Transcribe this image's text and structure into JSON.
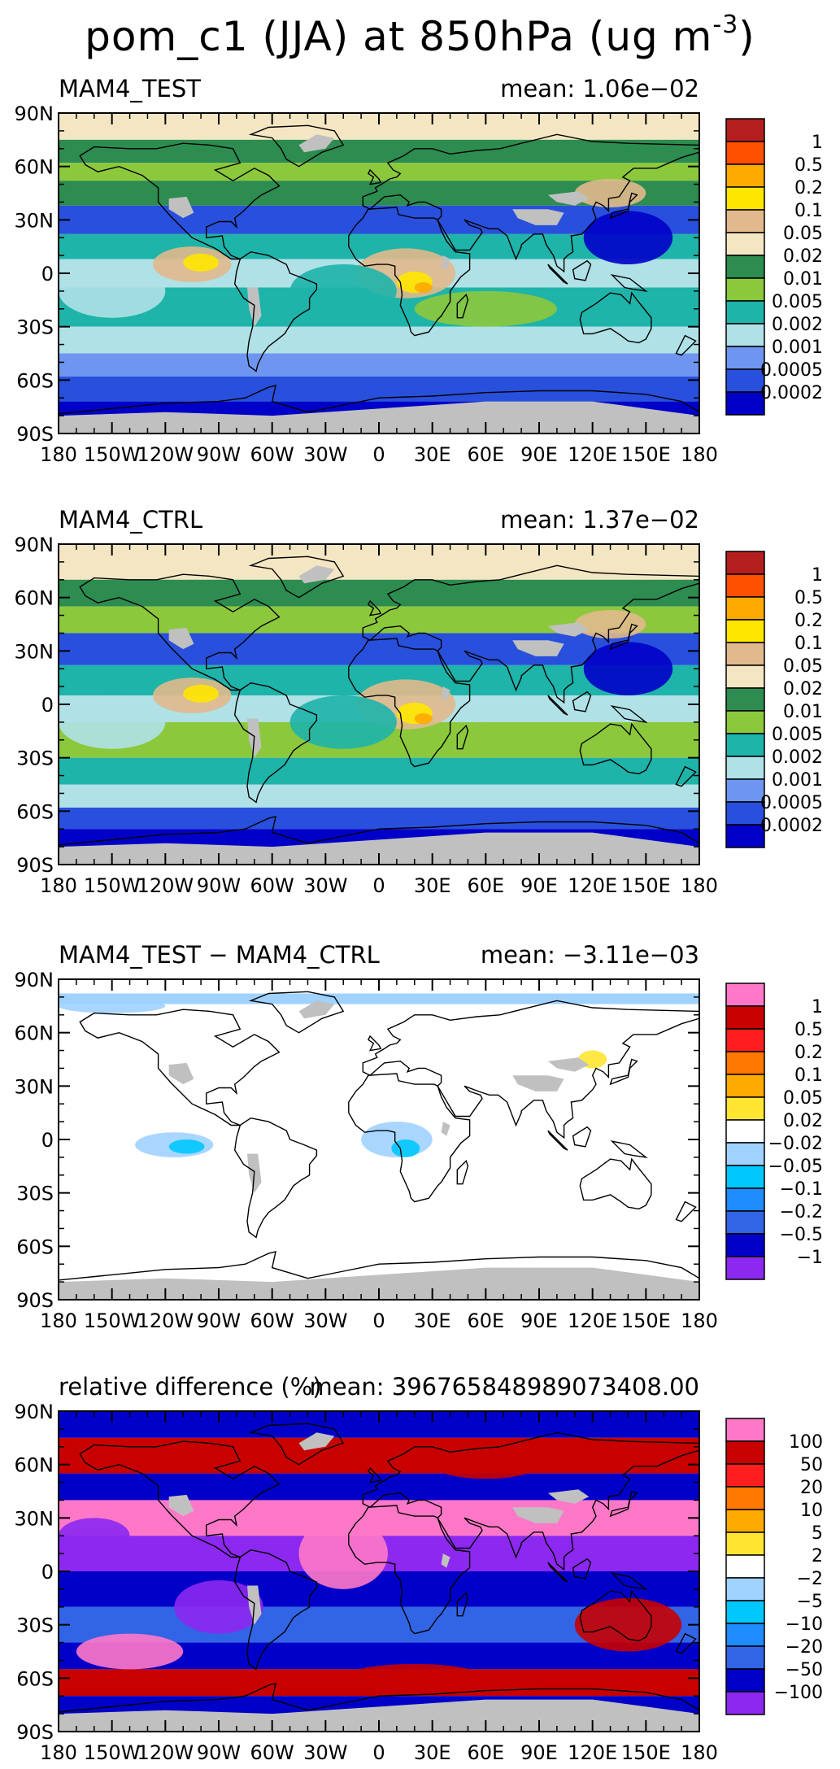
{
  "title": {
    "text": "pom_c1 (JJA) at 850hPa (ug m",
    "superscript": "-3",
    "close": ")"
  },
  "axes": {
    "lat_ticks": [
      "90N",
      "60N",
      "30N",
      "0",
      "30S",
      "60S",
      "90S"
    ],
    "lon_ticks": [
      "180",
      "150W",
      "120W",
      "90W",
      "60W",
      "30W",
      "0",
      "30E",
      "60E",
      "90E",
      "120E",
      "150E",
      "180"
    ]
  },
  "colors": {
    "abs_scale": [
      "#0000c8",
      "#2850dc",
      "#6e96f0",
      "#afe1e6",
      "#1eb4aa",
      "#8cc83c",
      "#2d8c50",
      "#f5e6c3",
      "#e1b98c",
      "#ffe600",
      "#ffaa00",
      "#ff5000",
      "#b41e1e"
    ],
    "diff_scale": [
      "#8c28f0",
      "#0000c8",
      "#3264e6",
      "#1e8cff",
      "#00c8ff",
      "#a0d2ff",
      "#ffffff",
      "#ffe632",
      "#ffaa00",
      "#ff7800",
      "#ff1e1e",
      "#c80000",
      "#ff78c8"
    ],
    "land_outline": "#000000",
    "missing": "#c0c0c0"
  },
  "chart_data": [
    {
      "type": "heatmap",
      "panel": "MAM4_TEST",
      "title": "MAM4_TEST",
      "mean_label": "mean:  1.06e−02",
      "mean": 0.0106,
      "xlim": [
        -180,
        180
      ],
      "ylim": [
        -90,
        90
      ],
      "colorbar_labels": [
        "1",
        "0.5",
        "0.2",
        "0.1",
        "0.05",
        "0.02",
        "0.01",
        "0.005",
        "0.002",
        "0.001",
        "0.0005",
        "0.0002"
      ],
      "levels": [
        0.0002,
        0.0005,
        0.001,
        0.002,
        0.005,
        0.01,
        0.02,
        0.05,
        0.1,
        0.2,
        0.5,
        1
      ]
    },
    {
      "type": "heatmap",
      "panel": "MAM4_CTRL",
      "title": "MAM4_CTRL",
      "mean_label": "mean:  1.37e−02",
      "mean": 0.0137,
      "xlim": [
        -180,
        180
      ],
      "ylim": [
        -90,
        90
      ],
      "colorbar_labels": [
        "1",
        "0.5",
        "0.2",
        "0.1",
        "0.05",
        "0.02",
        "0.01",
        "0.005",
        "0.002",
        "0.001",
        "0.0005",
        "0.0002"
      ],
      "levels": [
        0.0002,
        0.0005,
        0.001,
        0.002,
        0.005,
        0.01,
        0.02,
        0.05,
        0.1,
        0.2,
        0.5,
        1
      ]
    },
    {
      "type": "heatmap",
      "panel": "difference",
      "title": "MAM4_TEST − MAM4_CTRL",
      "mean_label": "mean:  −3.11e−03",
      "mean": -0.00311,
      "xlim": [
        -180,
        180
      ],
      "ylim": [
        -90,
        90
      ],
      "colorbar_labels": [
        "1",
        "0.5",
        "0.2",
        "0.1",
        "0.05",
        "0.02",
        "−0.02",
        "−0.05",
        "−0.1",
        "−0.2",
        "−0.5",
        "−1"
      ],
      "levels": [
        -1,
        -0.5,
        -0.2,
        -0.1,
        -0.05,
        -0.02,
        0.02,
        0.05,
        0.1,
        0.2,
        0.5,
        1
      ]
    },
    {
      "type": "heatmap",
      "panel": "relative difference",
      "title": "relative difference (%)",
      "mean_label": "mean:  396765848989073408.00",
      "mean": 3.967658489890734e+17,
      "xlim": [
        -180,
        180
      ],
      "ylim": [
        -90,
        90
      ],
      "colorbar_labels": [
        "100",
        "50",
        "20",
        "10",
        "5",
        "2",
        "−2",
        "−5",
        "−10",
        "−20",
        "−50",
        "−100"
      ],
      "levels": [
        -100,
        -50,
        -20,
        -10,
        -5,
        -2,
        2,
        5,
        10,
        20,
        50,
        100
      ]
    }
  ]
}
